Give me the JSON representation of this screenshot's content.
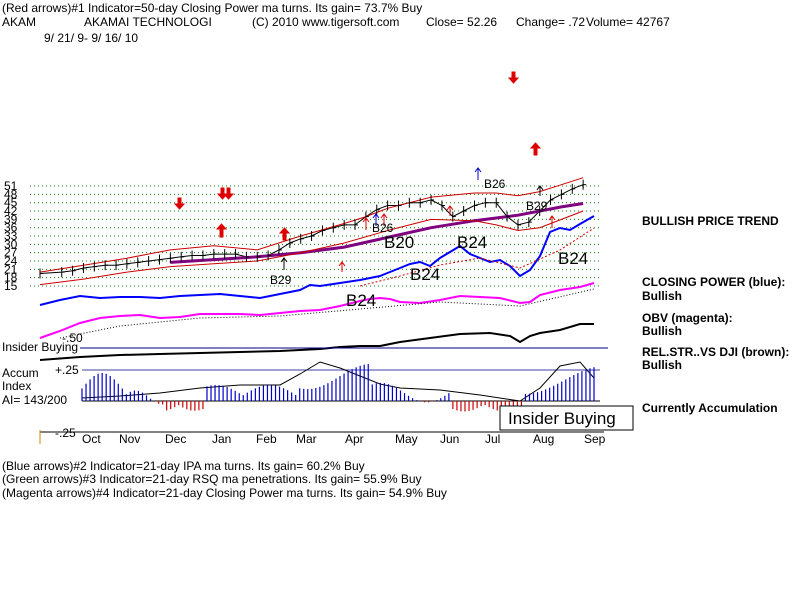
{
  "header": {
    "line1": "(Red arrows)#1 Indicator=50-day Closing Power ma turns. Its gain= 73.7% Buy",
    "ticker": "AKAM",
    "company": "AKAMAI TECHNOLOGI",
    "copyright": "(C) 2010 www.tigersoft.com",
    "close": "Close=  52.26",
    "change": "Change= .72",
    "volume": "Volume= 42767",
    "date_range": "9/ 21/ 9- 9/ 16/ 10"
  },
  "footer": {
    "line1": "(Blue arrows)#2 Indicator=21-day IPA ma turns. Its gain= 60.2% Buy",
    "line2": "(Green arrows)#3 Indicator=21-day RSQ ma penetrations. Its gain= 55.9% Buy",
    "line3": "(Magenta arrows)#4 Indicator=21-day Closing Power ma turns. Its gain= 54.9% Buy"
  },
  "right_panel": {
    "trend": "BULLISH PRICE TREND",
    "cp_label": "CLOSING POWER (blue):",
    "cp_value": "Bullish",
    "obv_label": "OBV (magenta):",
    "obv_value": "Bullish",
    "rel_label": "REL.STR..VS DJI (brown):",
    "rel_value": "Bullish",
    "accum_status": "Currently Accumulation"
  },
  "indicator_labels": {
    "insider": "Insider Buying",
    "minus50": "-.50",
    "accum": "Accum",
    "index": "Index",
    "ai": "AI= 143/200",
    "plus25": "+.25",
    "minus25": "-.25",
    "box": "Insider Buying"
  },
  "colors": {
    "price": "#000000",
    "ma": "#800080",
    "band": "#cc0000",
    "closing_power": "#0000ff",
    "obv": "#ff00ff",
    "rel_strength": "#000000",
    "accum_pos": "#0000cc",
    "accum_neg": "#cc0000",
    "grid": "#008000",
    "arrow_red": "#dd0000",
    "arrow_blue": "#0000cc"
  },
  "chart_data": {
    "type": "line",
    "title": "AKAM - AKAMAI TECHNOLOGI",
    "y_ticks": [
      15,
      18,
      21,
      24,
      27,
      30,
      33,
      36,
      39,
      42,
      45,
      48,
      51
    ],
    "ylim": [
      13,
      53
    ],
    "x_months": [
      "Oct",
      "Nov",
      "Dec",
      "Jan",
      "Feb",
      "Mar",
      "Apr",
      "May",
      "Jun",
      "Jul",
      "Aug",
      "Sep"
    ],
    "xlim": [
      0,
      51
    ],
    "series": [
      {
        "name": "Price",
        "x": [
          0,
          2,
          3,
          4,
          5,
          6,
          7,
          8,
          9,
          10,
          11,
          12,
          13,
          14,
          15,
          16,
          17,
          18,
          19,
          20,
          21,
          22,
          23,
          24,
          25,
          26,
          27,
          28,
          29,
          30,
          31,
          32,
          33,
          34,
          35,
          36,
          37,
          38,
          39,
          40,
          41,
          42,
          43,
          44,
          45,
          46,
          47,
          48,
          49,
          50
        ],
        "values": [
          19.5,
          20,
          20.5,
          21.5,
          22,
          22.5,
          22.5,
          23,
          23.5,
          24,
          24.5,
          25,
          25.5,
          26,
          26,
          26.5,
          26.5,
          26.5,
          25.5,
          25.5,
          26,
          28,
          30.5,
          32,
          33,
          35,
          36,
          37,
          37,
          40,
          42.5,
          44,
          44,
          45,
          45,
          46,
          44,
          40,
          42,
          44,
          45,
          45,
          40,
          37,
          38,
          42,
          46,
          48,
          50,
          51.5
        ]
      },
      {
        "name": "50-day MA",
        "x": [
          12,
          16,
          20,
          24,
          28,
          32,
          36,
          40,
          44,
          48,
          50
        ],
        "values": [
          23.5,
          24.5,
          25.5,
          27,
          29,
          32.5,
          36,
          38.5,
          40.5,
          43.5,
          44.7
        ]
      },
      {
        "name": "Upper band",
        "x": [
          0,
          4,
          8,
          12,
          16,
          20,
          24,
          28,
          30,
          32,
          36,
          40,
          42,
          44,
          46,
          48,
          50
        ],
        "values": [
          20,
          22.5,
          25,
          28,
          29.5,
          28,
          33,
          37.5,
          40,
          43,
          47,
          48.5,
          48.5,
          47.5,
          49,
          51.5,
          54
        ]
      },
      {
        "name": "Lower band",
        "x": [
          0,
          4,
          8,
          12,
          16,
          20,
          24,
          28,
          32,
          36,
          40,
          42,
          44,
          46,
          48,
          50
        ],
        "values": [
          15.5,
          17.5,
          20,
          22,
          23,
          24,
          27,
          30.5,
          35,
          39,
          38.5,
          37,
          35,
          36,
          39,
          42
        ]
      }
    ],
    "indicator_series": [
      {
        "name": "Closing Power (blue)",
        "status": "Bullish"
      },
      {
        "name": "OBV (magenta)",
        "status": "Bullish"
      },
      {
        "name": "Rel.Str. vs DJI (brown)",
        "status": "Bullish"
      },
      {
        "name": "Accumulation Index",
        "status": "Currently Accumulation",
        "ai": "143/200",
        "range": [
          -0.25,
          0.25
        ]
      }
    ],
    "annotations": [
      "B29",
      "B24",
      "B20",
      "B24",
      "B24",
      "B26",
      "B29",
      "B24",
      "Insider Buying"
    ]
  }
}
